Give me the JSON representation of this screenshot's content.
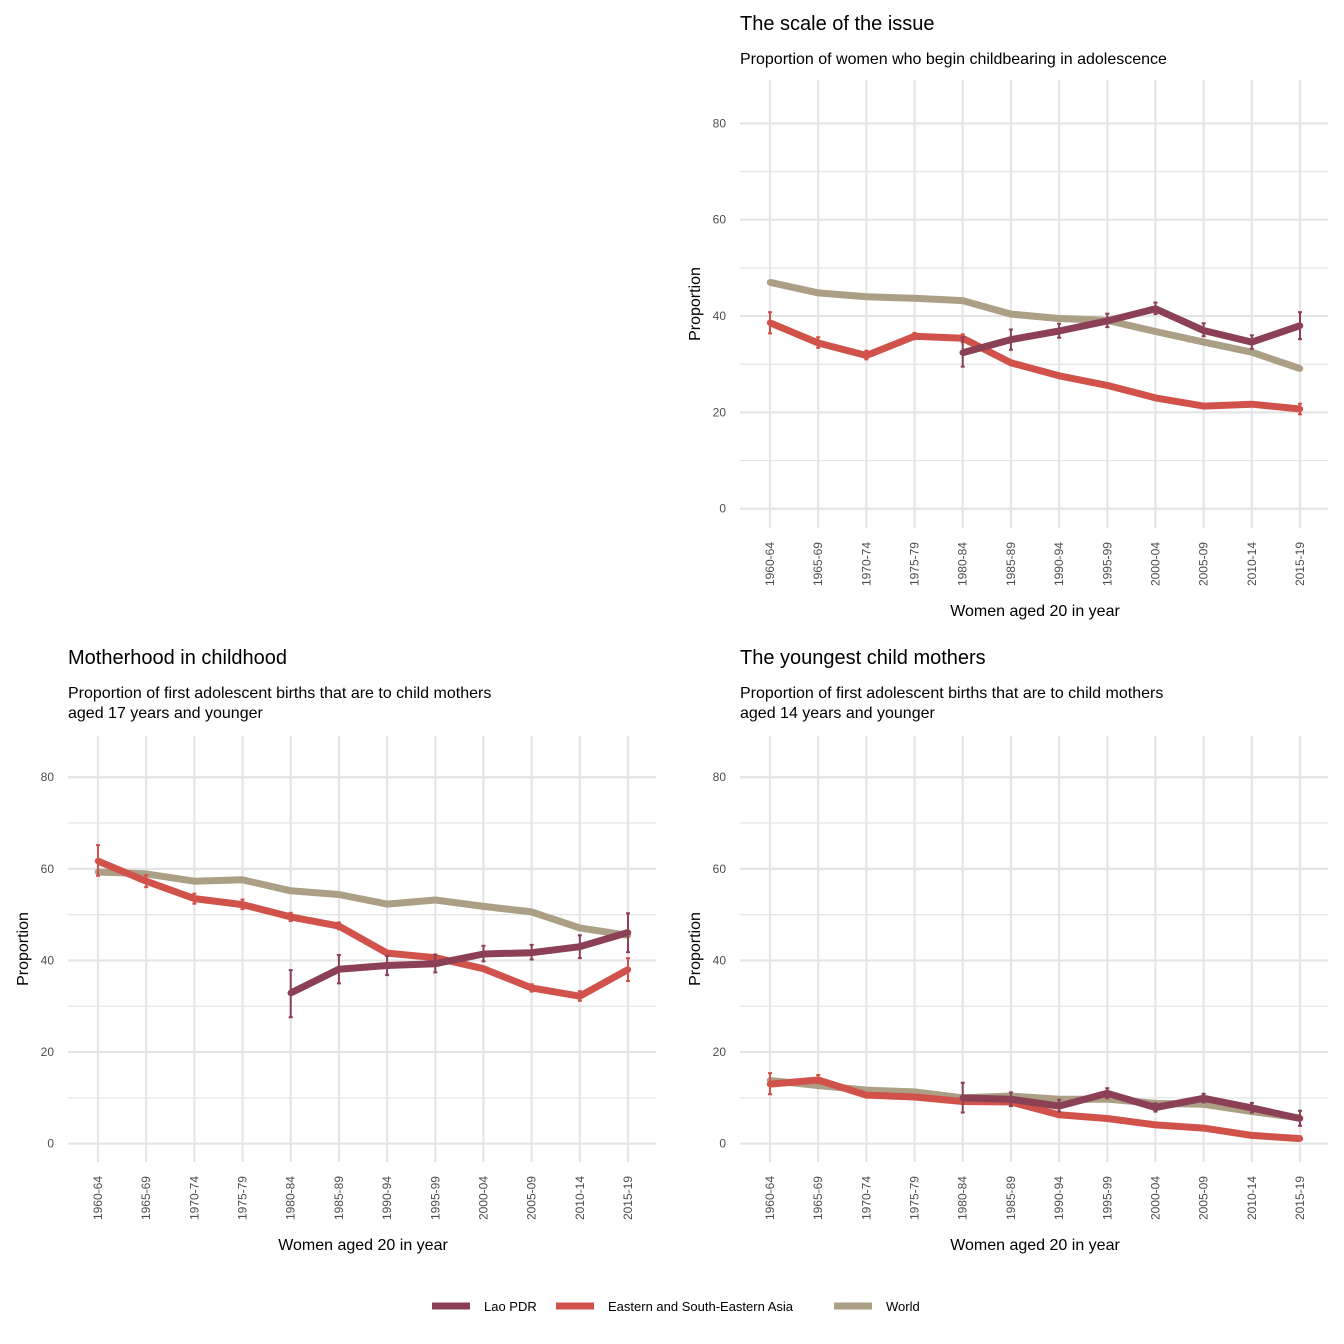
{
  "colors": {
    "Lao PDR": "#8b4055",
    "Eastern and South-Eastern Asia": "#d1524b",
    "World": "#ab9f85"
  },
  "legend": {
    "items": [
      "Lao PDR",
      "Eastern and South-Eastern Asia",
      "World"
    ]
  },
  "chart_data": [
    {
      "id": "scale",
      "type": "line",
      "title": "The scale of the issue",
      "subtitle": [
        "Proportion of women who begin childbearing in adolescence"
      ],
      "xlabel": "Women aged 20 in year",
      "ylabel": "Proportion",
      "ylim": [
        -4,
        89
      ],
      "yticks": [
        0,
        20,
        40,
        60,
        80
      ],
      "categories": [
        "1960-64",
        "1965-69",
        "1970-74",
        "1975-79",
        "1980-84",
        "1985-89",
        "1990-94",
        "1995-99",
        "2000-04",
        "2005-09",
        "2010-14",
        "2015-19"
      ],
      "grid": true,
      "series": [
        {
          "name": "World",
          "values": [
            47.0,
            44.8,
            44.0,
            43.7,
            43.2,
            40.4,
            39.5,
            39.1,
            36.8,
            34.6,
            32.5,
            29.1
          ],
          "err": null
        },
        {
          "name": "Eastern and South-Eastern Asia",
          "values": [
            38.6,
            34.4,
            31.8,
            35.8,
            35.4,
            30.3,
            27.6,
            25.6,
            23.0,
            21.3,
            21.7,
            20.7
          ],
          "err": [
            [
              36.4,
              40.8
            ],
            [
              33.4,
              35.6
            ],
            [
              31.0,
              32.8
            ],
            [
              35.2,
              36.5
            ],
            [
              34.6,
              36.2
            ],
            null,
            null,
            null,
            null,
            null,
            null,
            [
              19.6,
              21.8
            ]
          ]
        },
        {
          "name": "Lao PDR",
          "values": [
            null,
            null,
            null,
            null,
            32.4,
            35.1,
            36.9,
            39.0,
            41.5,
            37.0,
            34.6,
            38.0
          ],
          "err": [
            null,
            null,
            null,
            null,
            [
              29.5,
              35.6
            ],
            [
              33.0,
              37.2
            ],
            [
              35.5,
              38.4
            ],
            [
              37.7,
              40.5
            ],
            [
              40.4,
              42.8
            ],
            [
              35.8,
              38.5
            ],
            [
              33.2,
              36.0
            ],
            [
              35.2,
              40.8
            ]
          ]
        }
      ]
    },
    {
      "id": "motherhood",
      "type": "line",
      "title": "Motherhood in childhood",
      "subtitle": [
        "Proportion of first adolescent births that are to child mothers",
        "aged 17 years and younger"
      ],
      "xlabel": "Women aged 20 in year",
      "ylabel": "Proportion",
      "ylim": [
        -4,
        89
      ],
      "yticks": [
        0,
        20,
        40,
        60,
        80
      ],
      "categories": [
        "1960-64",
        "1965-69",
        "1970-74",
        "1975-79",
        "1980-84",
        "1985-89",
        "1990-94",
        "1995-99",
        "2000-04",
        "2005-09",
        "2010-14",
        "2015-19"
      ],
      "grid": true,
      "series": [
        {
          "name": "World",
          "values": [
            59.3,
            58.9,
            57.3,
            57.6,
            55.2,
            54.4,
            52.3,
            53.2,
            51.8,
            50.6,
            47.1,
            45.5
          ],
          "err": null
        },
        {
          "name": "Eastern and South-Eastern Asia",
          "values": [
            61.7,
            57.3,
            53.5,
            52.2,
            49.5,
            47.5,
            41.6,
            40.6,
            38.2,
            34.0,
            32.2,
            38.0
          ],
          "err": [
            [
              58.5,
              65.2
            ],
            [
              56.0,
              58.6
            ],
            [
              52.4,
              54.6
            ],
            [
              51.2,
              53.3
            ],
            [
              48.6,
              50.4
            ],
            [
              46.8,
              48.3
            ],
            null,
            null,
            null,
            [
              33.2,
              34.8
            ],
            [
              31.2,
              33.3
            ],
            [
              35.5,
              40.5
            ]
          ]
        },
        {
          "name": "Lao PDR",
          "values": [
            null,
            null,
            null,
            null,
            32.9,
            38.1,
            38.9,
            39.3,
            41.4,
            41.7,
            43.0,
            46.1
          ],
          "err": [
            null,
            null,
            null,
            null,
            [
              27.6,
              37.9
            ],
            [
              35.0,
              41.2
            ],
            [
              36.8,
              41.0
            ],
            [
              37.4,
              41.3
            ],
            [
              39.8,
              43.2
            ],
            [
              40.2,
              43.4
            ],
            [
              40.5,
              45.5
            ],
            [
              41.8,
              50.3
            ]
          ]
        }
      ]
    },
    {
      "id": "youngest",
      "type": "line",
      "title": "The youngest child mothers",
      "subtitle": [
        "Proportion of first adolescent births that are to child mothers",
        "aged 14 years and younger"
      ],
      "xlabel": "Women aged 20 in year",
      "ylabel": "Proportion",
      "ylim": [
        -4,
        89
      ],
      "yticks": [
        0,
        20,
        40,
        60,
        80
      ],
      "categories": [
        "1960-64",
        "1965-69",
        "1970-74",
        "1975-79",
        "1980-84",
        "1985-89",
        "1990-94",
        "1995-99",
        "2000-04",
        "2005-09",
        "2010-14",
        "2015-19"
      ],
      "grid": true,
      "series": [
        {
          "name": "World",
          "values": [
            13.8,
            12.7,
            11.7,
            11.3,
            10.0,
            10.4,
            9.7,
            9.7,
            8.8,
            8.6,
            7.0,
            5.6
          ],
          "err": null
        },
        {
          "name": "Eastern and South-Eastern Asia",
          "values": [
            13.0,
            13.9,
            10.6,
            10.2,
            9.2,
            9.1,
            6.3,
            5.5,
            4.1,
            3.4,
            1.8,
            1.1
          ],
          "err": [
            [
              10.8,
              15.4
            ],
            [
              13.2,
              15.0
            ],
            null,
            null,
            null,
            null,
            null,
            null,
            null,
            null,
            null,
            [
              0.8,
              1.6
            ]
          ]
        },
        {
          "name": "Lao PDR",
          "values": [
            null,
            null,
            null,
            null,
            10.0,
            9.7,
            8.2,
            11.0,
            7.9,
            9.9,
            7.8,
            5.5
          ],
          "err": [
            null,
            null,
            null,
            null,
            [
              6.8,
              13.3
            ],
            [
              8.2,
              11.2
            ],
            [
              7.0,
              9.6
            ],
            [
              9.9,
              12.1
            ],
            [
              7.0,
              8.8
            ],
            [
              9.0,
              10.9
            ],
            [
              6.8,
              8.9
            ],
            [
              3.9,
              7.2
            ]
          ]
        }
      ]
    }
  ]
}
